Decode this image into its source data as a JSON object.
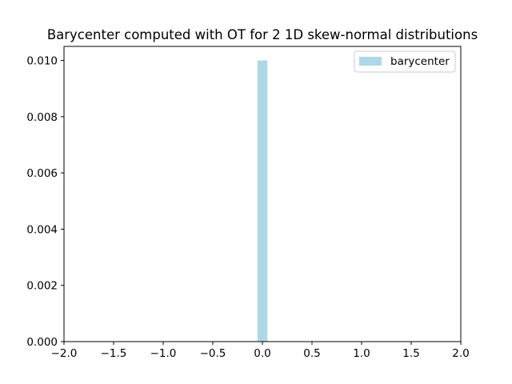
{
  "chart_data": {
    "type": "bar",
    "title": "Barycenter computed with OT for 2 1D skew-normal distributions",
    "xlabel": "",
    "ylabel": "",
    "xlim": [
      -2.0,
      2.0
    ],
    "ylim": [
      0.0,
      0.0105
    ],
    "x_ticks": [
      -2.0,
      -1.5,
      -1.0,
      -0.5,
      0.0,
      0.5,
      1.0,
      1.5,
      2.0
    ],
    "x_tick_labels": [
      "−2.0",
      "−1.5",
      "−1.0",
      "−0.5",
      "0.0",
      "0.5",
      "1.0",
      "1.5",
      "2.0"
    ],
    "y_ticks": [
      0.0,
      0.002,
      0.004,
      0.006,
      0.008,
      0.01
    ],
    "y_tick_labels": [
      "0.000",
      "0.002",
      "0.004",
      "0.006",
      "0.008",
      "0.010"
    ],
    "grid": false,
    "legend_position": "upper-right",
    "series": [
      {
        "name": "barycenter",
        "color": "#add8e6",
        "bars": [
          {
            "x_start": -0.05,
            "x_end": 0.05,
            "value": 0.01
          }
        ]
      }
    ]
  }
}
